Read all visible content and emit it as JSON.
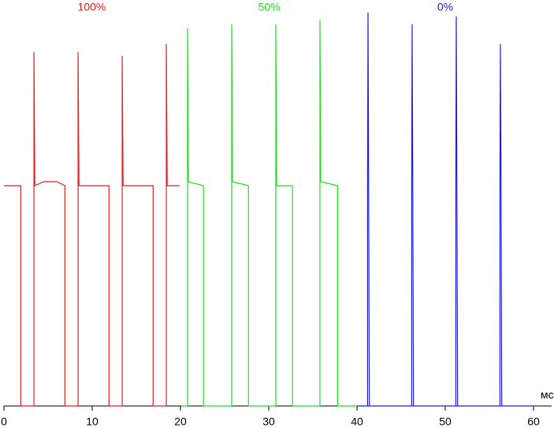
{
  "chart_data": {
    "type": "line",
    "x_label": "мс",
    "xlim": [
      0,
      60
    ],
    "xticks": [
      0,
      10,
      20,
      30,
      40,
      50,
      60
    ],
    "ylim": [
      0,
      100
    ],
    "series": [
      {
        "name": "100%",
        "color": "#e02020",
        "x": [
          0,
          1.9,
          1.9,
          3.4,
          3.4,
          3.5,
          4.5,
          6.0,
          6.9,
          6.9,
          8.4,
          8.4,
          8.5,
          11.9,
          11.9,
          13.4,
          13.4,
          13.5,
          16.9,
          16.9,
          18.4,
          18.4,
          18.5,
          19.9
        ],
        "values": [
          56,
          56,
          0,
          0,
          90,
          56,
          57,
          57,
          56,
          0,
          0,
          90,
          56,
          56,
          0,
          0,
          89,
          56,
          56,
          0,
          0,
          92,
          56,
          56
        ]
      },
      {
        "name": "50%",
        "color": "#20e020",
        "x": [
          20.1,
          20.8,
          20.8,
          20.9,
          22.6,
          22.6,
          25.8,
          25.8,
          25.9,
          27.7,
          27.7,
          30.8,
          30.8,
          30.9,
          32.7,
          32.7,
          35.8,
          35.8,
          35.9,
          37.8,
          37.8,
          40
        ],
        "values": [
          0,
          0,
          96,
          57,
          56,
          0,
          0,
          97,
          57,
          56,
          0,
          0,
          97,
          56,
          56,
          0,
          0,
          98,
          57,
          56,
          0,
          0
        ]
      },
      {
        "name": "0%",
        "color": "#2020d0",
        "x": [
          40,
          41.2,
          41.2,
          41.25,
          41.3,
          41.4,
          46.2,
          46.2,
          46.25,
          46.3,
          46.4,
          51.2,
          51.2,
          51.25,
          51.3,
          51.4,
          56.2,
          56.2,
          56.25,
          56.3,
          56.4,
          60
        ],
        "values": [
          0,
          0,
          56,
          100,
          69,
          0,
          0,
          56,
          97,
          69,
          0,
          0,
          56,
          99,
          69,
          0,
          0,
          56,
          92,
          69,
          0,
          0
        ]
      }
    ]
  }
}
